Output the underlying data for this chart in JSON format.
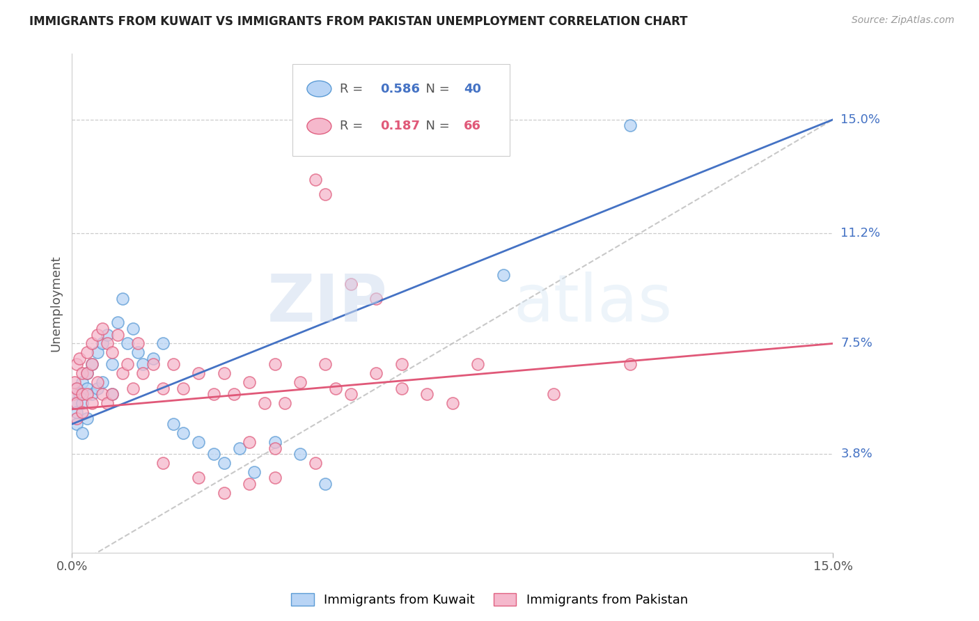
{
  "title": "IMMIGRANTS FROM KUWAIT VS IMMIGRANTS FROM PAKISTAN UNEMPLOYMENT CORRELATION CHART",
  "source": "Source: ZipAtlas.com",
  "ylabel": "Unemployment",
  "ytick_labels": [
    "15.0%",
    "11.2%",
    "7.5%",
    "3.8%"
  ],
  "ytick_values": [
    0.15,
    0.112,
    0.075,
    0.038
  ],
  "xmin": 0.0,
  "xmax": 0.15,
  "ymin": 0.005,
  "ymax": 0.172,
  "legend_kuwait_R": "0.586",
  "legend_kuwait_N": "40",
  "legend_pakistan_R": "0.187",
  "legend_pakistan_N": "66",
  "watermark_zip": "ZIP",
  "watermark_atlas": "atlas",
  "color_kuwait_fill": "#b8d4f5",
  "color_kuwait_edge": "#5b9bd5",
  "color_pakistan_fill": "#f5b8cc",
  "color_pakistan_edge": "#e06080",
  "color_line_kuwait": "#4472c4",
  "color_line_pakistan": "#e05878",
  "color_dashed": "#bbbbbb",
  "color_ytick": "#4472c4",
  "color_grid": "#cccccc",
  "kuwait_x": [
    0.0005,
    0.001,
    0.001,
    0.001,
    0.0015,
    0.002,
    0.002,
    0.002,
    0.003,
    0.003,
    0.003,
    0.004,
    0.004,
    0.005,
    0.005,
    0.006,
    0.006,
    0.007,
    0.008,
    0.008,
    0.009,
    0.01,
    0.011,
    0.012,
    0.013,
    0.014,
    0.016,
    0.018,
    0.02,
    0.022,
    0.025,
    0.028,
    0.03,
    0.033,
    0.036,
    0.04,
    0.045,
    0.05,
    0.085,
    0.11
  ],
  "kuwait_y": [
    0.055,
    0.06,
    0.052,
    0.048,
    0.058,
    0.062,
    0.055,
    0.045,
    0.065,
    0.06,
    0.05,
    0.068,
    0.058,
    0.072,
    0.06,
    0.075,
    0.062,
    0.078,
    0.068,
    0.058,
    0.082,
    0.09,
    0.075,
    0.08,
    0.072,
    0.068,
    0.07,
    0.075,
    0.048,
    0.045,
    0.042,
    0.038,
    0.035,
    0.04,
    0.032,
    0.042,
    0.038,
    0.028,
    0.098,
    0.148
  ],
  "pakistan_x": [
    0.0003,
    0.0005,
    0.001,
    0.001,
    0.001,
    0.001,
    0.0015,
    0.002,
    0.002,
    0.002,
    0.003,
    0.003,
    0.003,
    0.004,
    0.004,
    0.004,
    0.005,
    0.005,
    0.006,
    0.006,
    0.007,
    0.007,
    0.008,
    0.008,
    0.009,
    0.01,
    0.011,
    0.012,
    0.013,
    0.014,
    0.016,
    0.018,
    0.02,
    0.022,
    0.025,
    0.028,
    0.03,
    0.032,
    0.035,
    0.038,
    0.04,
    0.042,
    0.045,
    0.048,
    0.05,
    0.052,
    0.055,
    0.06,
    0.065,
    0.07,
    0.075,
    0.08,
    0.048,
    0.05,
    0.055,
    0.06,
    0.035,
    0.04,
    0.018,
    0.025,
    0.03,
    0.035,
    0.095,
    0.11,
    0.04,
    0.065
  ],
  "pakistan_y": [
    0.058,
    0.062,
    0.068,
    0.06,
    0.055,
    0.05,
    0.07,
    0.065,
    0.058,
    0.052,
    0.072,
    0.065,
    0.058,
    0.075,
    0.068,
    0.055,
    0.078,
    0.062,
    0.08,
    0.058,
    0.075,
    0.055,
    0.072,
    0.058,
    0.078,
    0.065,
    0.068,
    0.06,
    0.075,
    0.065,
    0.068,
    0.06,
    0.068,
    0.06,
    0.065,
    0.058,
    0.065,
    0.058,
    0.062,
    0.055,
    0.068,
    0.055,
    0.062,
    0.035,
    0.068,
    0.06,
    0.058,
    0.065,
    0.06,
    0.058,
    0.055,
    0.068,
    0.13,
    0.125,
    0.095,
    0.09,
    0.042,
    0.04,
    0.035,
    0.03,
    0.025,
    0.028,
    0.058,
    0.068,
    0.03,
    0.068
  ]
}
